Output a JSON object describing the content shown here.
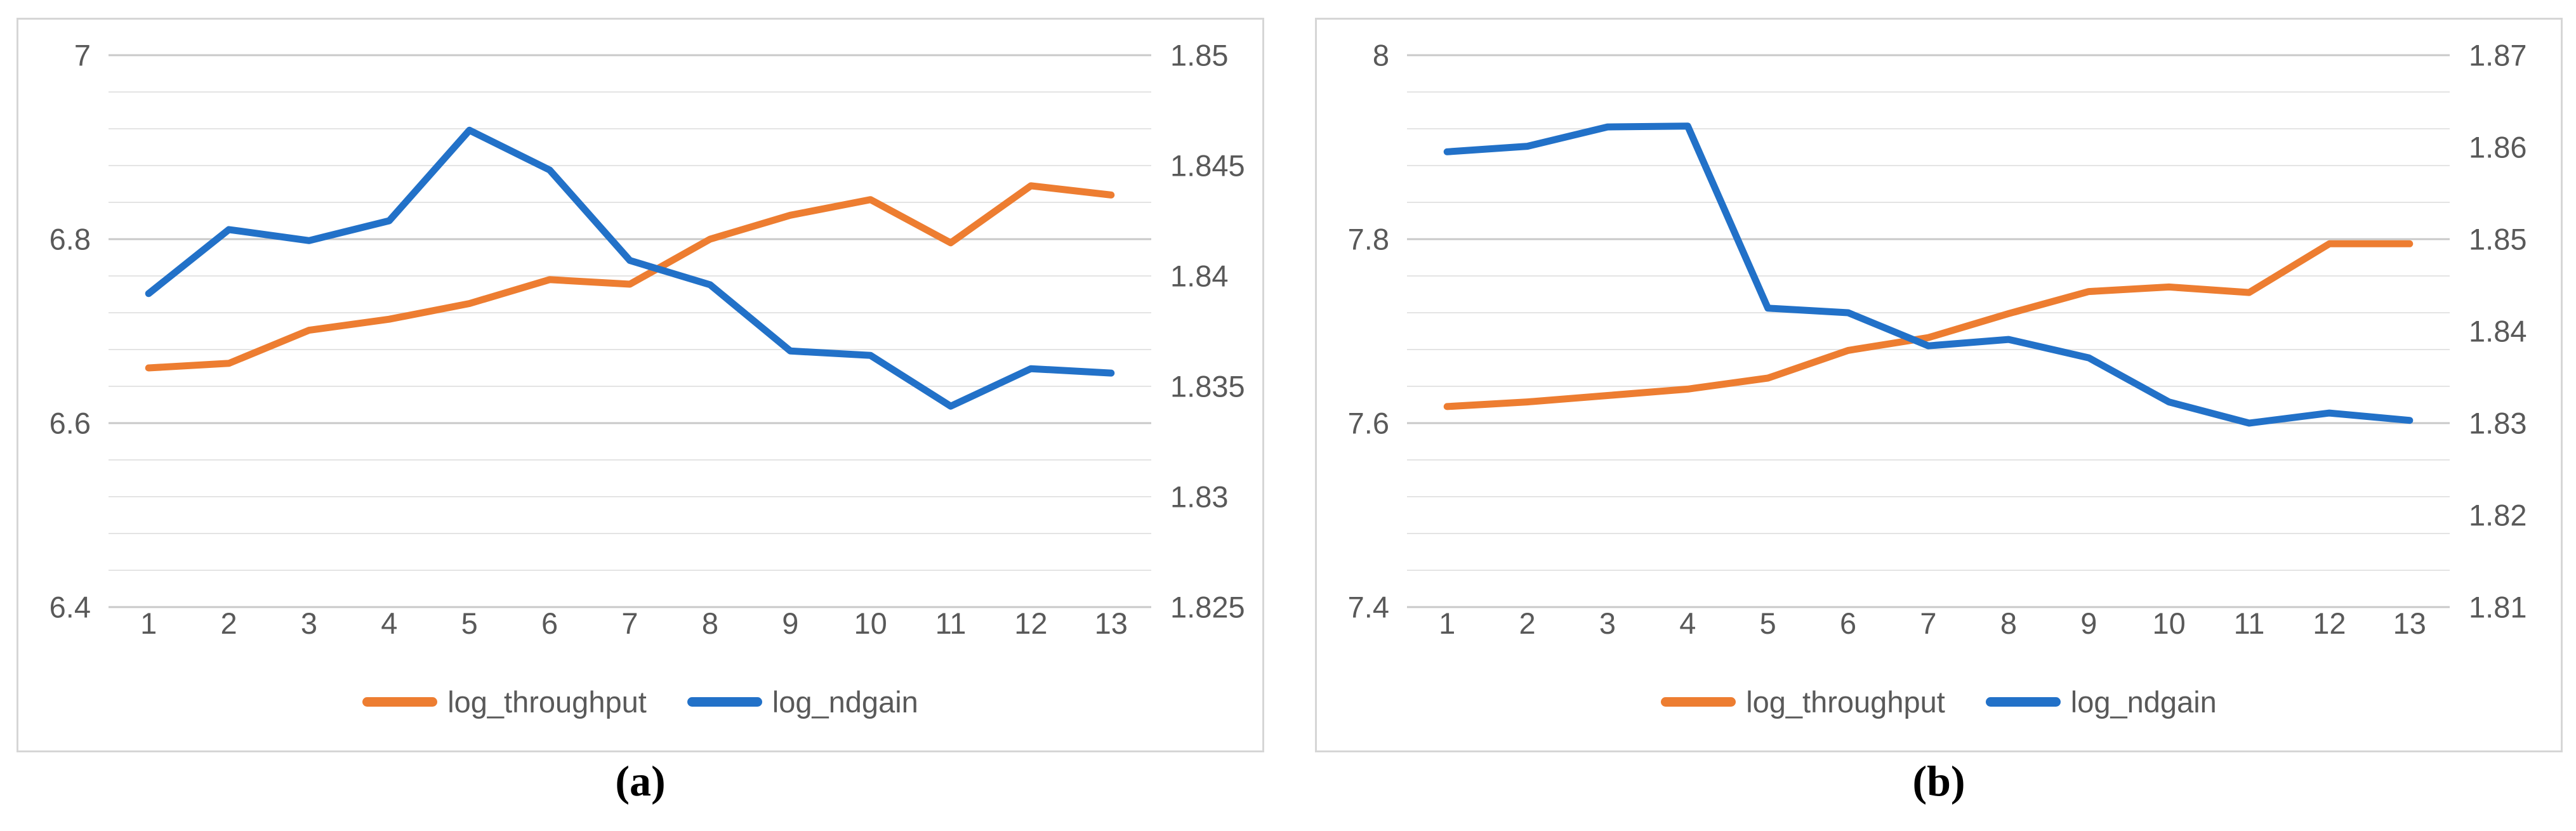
{
  "figure": {
    "background": "#ffffff",
    "axis_text_color": "#595959"
  },
  "chart_data": [
    {
      "id": "a",
      "type": "line",
      "caption": "(a)",
      "categories": [
        1,
        2,
        3,
        4,
        5,
        6,
        7,
        8,
        9,
        10,
        11,
        12,
        13
      ],
      "gridline_intervals": 15,
      "grid": "on",
      "legend_position": "bottom",
      "left_axis": {
        "min": 6.4,
        "max": 7.0,
        "tick_labels": [
          "7",
          "6.8",
          "6.6",
          "6.4"
        ]
      },
      "right_axis": {
        "min": 1.825,
        "max": 1.85,
        "tick_labels": [
          "1.85",
          "1.845",
          "1.84",
          "1.835",
          "1.83",
          "1.825"
        ]
      },
      "series": [
        {
          "name": "log_throughput",
          "axis": "left",
          "color": "#ED7D31",
          "values": [
            6.66,
            6.665,
            6.701,
            6.713,
            6.73,
            6.756,
            6.751,
            6.8,
            6.826,
            6.843,
            6.796,
            6.858,
            6.848
          ]
        },
        {
          "name": "log_ndgain",
          "axis": "right",
          "color": "#2271C8",
          "values": [
            1.8392,
            1.8421,
            1.8416,
            1.8425,
            1.8466,
            1.8448,
            1.8407,
            1.8396,
            1.8366,
            1.8364,
            1.8341,
            1.8358,
            1.8356
          ]
        }
      ]
    },
    {
      "id": "b",
      "type": "line",
      "caption": "(b)",
      "categories": [
        1,
        2,
        3,
        4,
        5,
        6,
        7,
        8,
        9,
        10,
        11,
        12,
        13
      ],
      "gridline_intervals": 15,
      "grid": "on",
      "legend_position": "bottom",
      "left_axis": {
        "min": 7.4,
        "max": 8.0,
        "tick_labels": [
          "8",
          "7.8",
          "7.6",
          "7.4"
        ]
      },
      "right_axis": {
        "min": 1.81,
        "max": 1.87,
        "tick_labels": [
          "1.87",
          "1.86",
          "1.85",
          "1.84",
          "1.83",
          "1.82",
          "1.81"
        ]
      },
      "series": [
        {
          "name": "log_throughput",
          "axis": "left",
          "color": "#ED7D31",
          "values": [
            7.618,
            7.623,
            7.63,
            7.637,
            7.649,
            7.679,
            7.693,
            7.719,
            7.743,
            7.748,
            7.742,
            7.795,
            7.795
          ]
        },
        {
          "name": "log_ndgain",
          "axis": "right",
          "color": "#2271C8",
          "values": [
            1.8595,
            1.8601,
            1.8622,
            1.8623,
            1.8425,
            1.842,
            1.8384,
            1.8391,
            1.8371,
            1.8323,
            1.83,
            1.8311,
            1.8303
          ]
        }
      ]
    }
  ]
}
